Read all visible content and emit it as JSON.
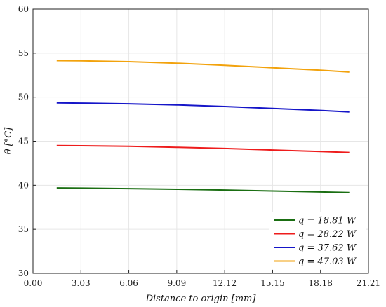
{
  "chart_data": {
    "type": "line",
    "xlabel": "Distance to origin [mm]",
    "ylabel": "θ [°C]",
    "xlim": [
      0,
      21.21
    ],
    "ylim": [
      30,
      60
    ],
    "xticks": [
      0,
      3.03,
      6.06,
      9.09,
      12.12,
      15.15,
      18.18,
      21.21
    ],
    "xtick_labels": [
      "0.00",
      "3.03",
      "6.06",
      "9.09",
      "12.12",
      "15.15",
      "18.18",
      "21.21"
    ],
    "yticks": [
      30,
      35,
      40,
      45,
      50,
      55,
      60
    ],
    "ytick_labels": [
      "30",
      "35",
      "40",
      "45",
      "50",
      "55",
      "60"
    ],
    "grid": true,
    "legend_position": "bottom-right",
    "series": [
      {
        "name": "q = 18.81 W",
        "color": "#1a6e12",
        "x": [
          1.5,
          3.03,
          6.06,
          9.09,
          12.12,
          15.15,
          18.18,
          20.0
        ],
        "y": [
          39.7,
          39.68,
          39.62,
          39.55,
          39.46,
          39.35,
          39.24,
          39.17
        ]
      },
      {
        "name": "q = 28.22 W",
        "color": "#ee1c1c",
        "x": [
          1.5,
          3.03,
          6.06,
          9.09,
          12.12,
          15.15,
          18.18,
          20.0
        ],
        "y": [
          44.5,
          44.48,
          44.42,
          44.31,
          44.17,
          44.0,
          43.82,
          43.72
        ]
      },
      {
        "name": "q = 37.62 W",
        "color": "#1515c8",
        "x": [
          1.5,
          3.03,
          6.06,
          9.09,
          12.12,
          15.15,
          18.18,
          20.0
        ],
        "y": [
          49.35,
          49.33,
          49.25,
          49.12,
          48.94,
          48.72,
          48.49,
          48.33
        ]
      },
      {
        "name": "q = 47.03 W",
        "color": "#f2a20c",
        "x": [
          1.5,
          3.03,
          6.06,
          9.09,
          12.12,
          15.15,
          18.18,
          20.0
        ],
        "y": [
          54.15,
          54.13,
          54.03,
          53.86,
          53.62,
          53.34,
          53.05,
          52.85
        ]
      }
    ]
  }
}
